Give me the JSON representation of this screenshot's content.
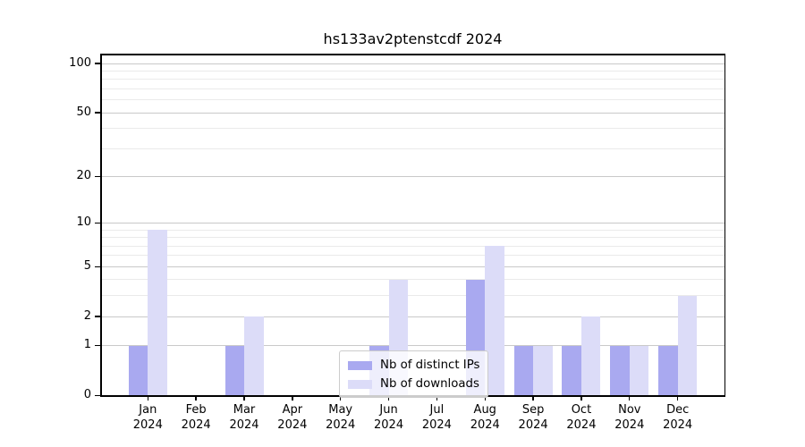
{
  "chart_data": {
    "type": "bar",
    "title": "hs133av2ptenstcdf 2024",
    "categories": [
      "Jan 2024",
      "Feb 2024",
      "Mar 2024",
      "Apr 2024",
      "May 2024",
      "Jun 2024",
      "Jul 2024",
      "Aug 2024",
      "Sep 2024",
      "Oct 2024",
      "Nov 2024",
      "Dec 2024"
    ],
    "month_labels": [
      "Jan",
      "Feb",
      "Mar",
      "Apr",
      "May",
      "Jun",
      "Jul",
      "Aug",
      "Sep",
      "Oct",
      "Nov",
      "Dec"
    ],
    "year_label": "2024",
    "series": [
      {
        "name": "Nb of distinct IPs",
        "color": "#a9a9f0",
        "values": [
          1,
          0,
          1,
          0,
          0,
          1,
          0,
          4,
          1,
          1,
          1,
          1
        ]
      },
      {
        "name": "Nb of downloads",
        "color": "#dcdcf8",
        "values": [
          9,
          0,
          2,
          0,
          0,
          4,
          0,
          7,
          1,
          2,
          1,
          3
        ]
      }
    ],
    "xlabel": "",
    "ylabel": "",
    "y_scale": "log1p",
    "ylim": [
      0,
      115
    ],
    "y_major_ticks": [
      0,
      1,
      2,
      5,
      10,
      20,
      50,
      100
    ],
    "y_minor_gridlines": [
      3,
      4,
      6,
      7,
      8,
      9,
      30,
      40,
      60,
      70,
      80,
      90
    ],
    "grid": true,
    "legend_position": "inside lower-center"
  },
  "colors": {
    "bar_dark": "#a9a9f0",
    "bar_light": "#dcdcf8",
    "grid_major": "#c9c9c9",
    "grid_minor": "#eaeaea",
    "axis": "#000000",
    "legend_border": "#cccccc",
    "background": "#ffffff"
  }
}
